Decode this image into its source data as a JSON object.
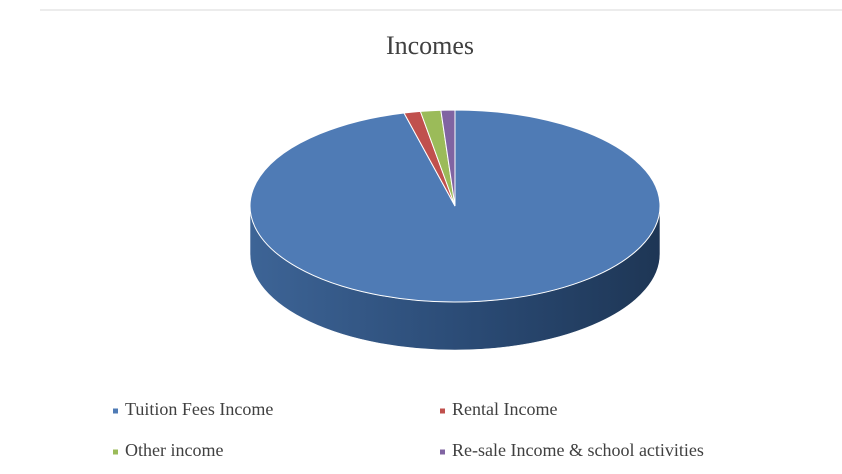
{
  "chart_data": {
    "type": "pie3d",
    "title": "Incomes",
    "categories": [
      "Tuition Fees Income",
      "Rental Income",
      "Other income",
      "Re-sale Income & school activities"
    ],
    "values": [
      96,
      1.3,
      1.6,
      1.1
    ],
    "colors": [
      "#4f7bb5",
      "#c0504d",
      "#9bbb59",
      "#8064a2"
    ],
    "legend": "bottom"
  }
}
